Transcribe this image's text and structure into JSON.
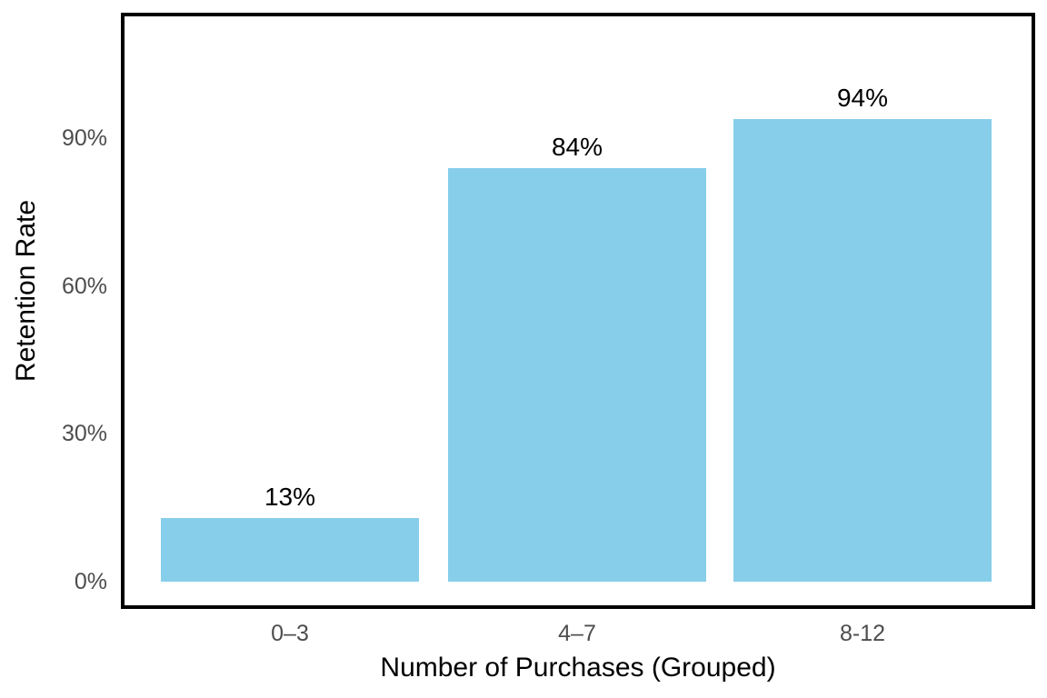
{
  "chart_data": {
    "type": "bar",
    "categories": [
      "0–3",
      "4–7",
      "8-12"
    ],
    "values": [
      13,
      84,
      94
    ],
    "value_labels": [
      "13%",
      "84%",
      "94%"
    ],
    "series_name": "Retention Rate",
    "title": "",
    "xlabel": "Number of Purchases (Grouped)",
    "ylabel": "Retention Rate",
    "y_ticks": [
      {
        "value": 0,
        "label": "0%"
      },
      {
        "value": 30,
        "label": "30%"
      },
      {
        "value": 60,
        "label": "60%"
      },
      {
        "value": 90,
        "label": "90%"
      }
    ],
    "ylim": [
      0,
      100
    ],
    "grid": false,
    "legend_position": "none",
    "colors": {
      "bar_fill": "#87CEEB",
      "tick_text": "#4d4d4d",
      "axis_title_text": "#000000",
      "value_label_text": "#000000",
      "panel_border": "#000000",
      "background": "#ffffff"
    }
  }
}
